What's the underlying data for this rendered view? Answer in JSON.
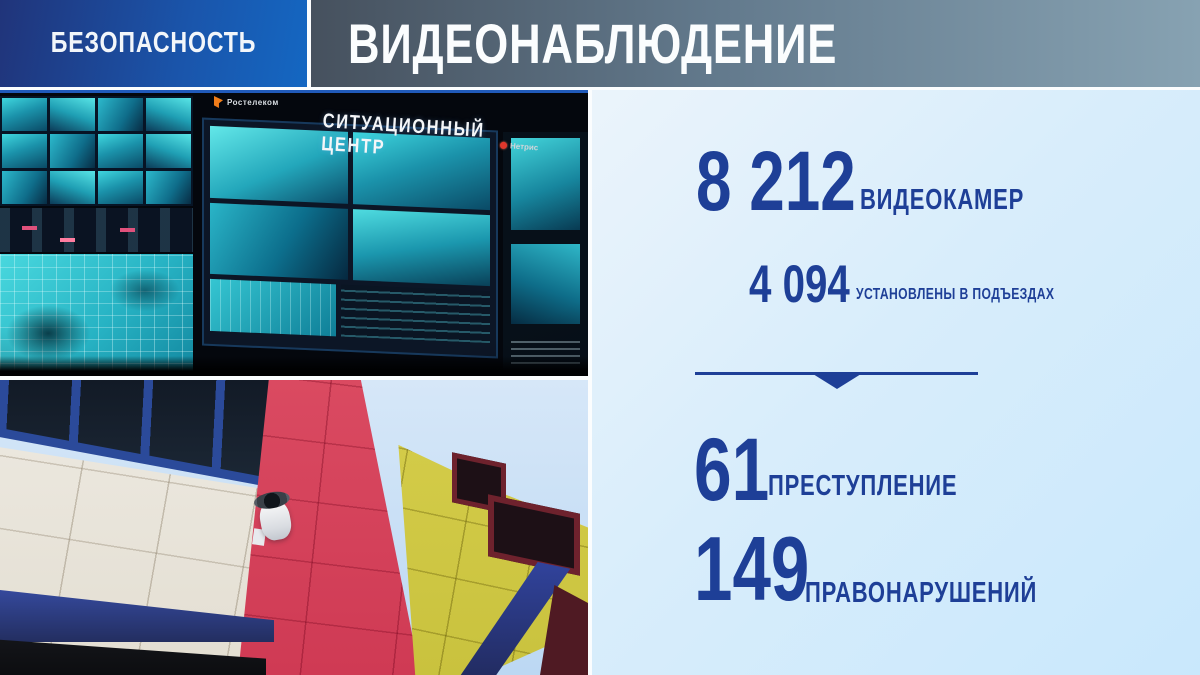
{
  "slide": {
    "section": "БЕЗОПАСНОСТЬ",
    "title": "ВИДЕОНАБЛЮДЕНИЕ"
  },
  "situation_center": {
    "caption": "СИТУАЦИОННЫЙ ЦЕНТР",
    "vendor_left": "Ростелеком",
    "vendor_right": "Нетрис"
  },
  "stats": {
    "cameras_value": "8 212",
    "cameras_label": "ВИДЕОКАМЕР",
    "entrance_value": "4 094",
    "entrance_label": "УСТАНОВЛЕНЫ В ПОДЪЕЗДАХ",
    "crimes_value": "61",
    "crimes_label": "ПРЕСТУПЛЕНИЕ",
    "offenses_value": "149",
    "offenses_label": "ПРАВОНАРУШЕНИЙ"
  },
  "colors": {
    "accent_navy": "#1e3f97",
    "header_blue_start": "#20347a",
    "header_blue_end": "#1467c2",
    "header_gray_start": "#46515e",
    "header_gray_end": "#87a2b2",
    "panel_bg_start": "#ebf4fb",
    "panel_bg_end": "#c9e8fc",
    "screen_teal": "#3fd6de",
    "facade_red": "#d74a60",
    "facade_yellow": "#d2ca45"
  }
}
